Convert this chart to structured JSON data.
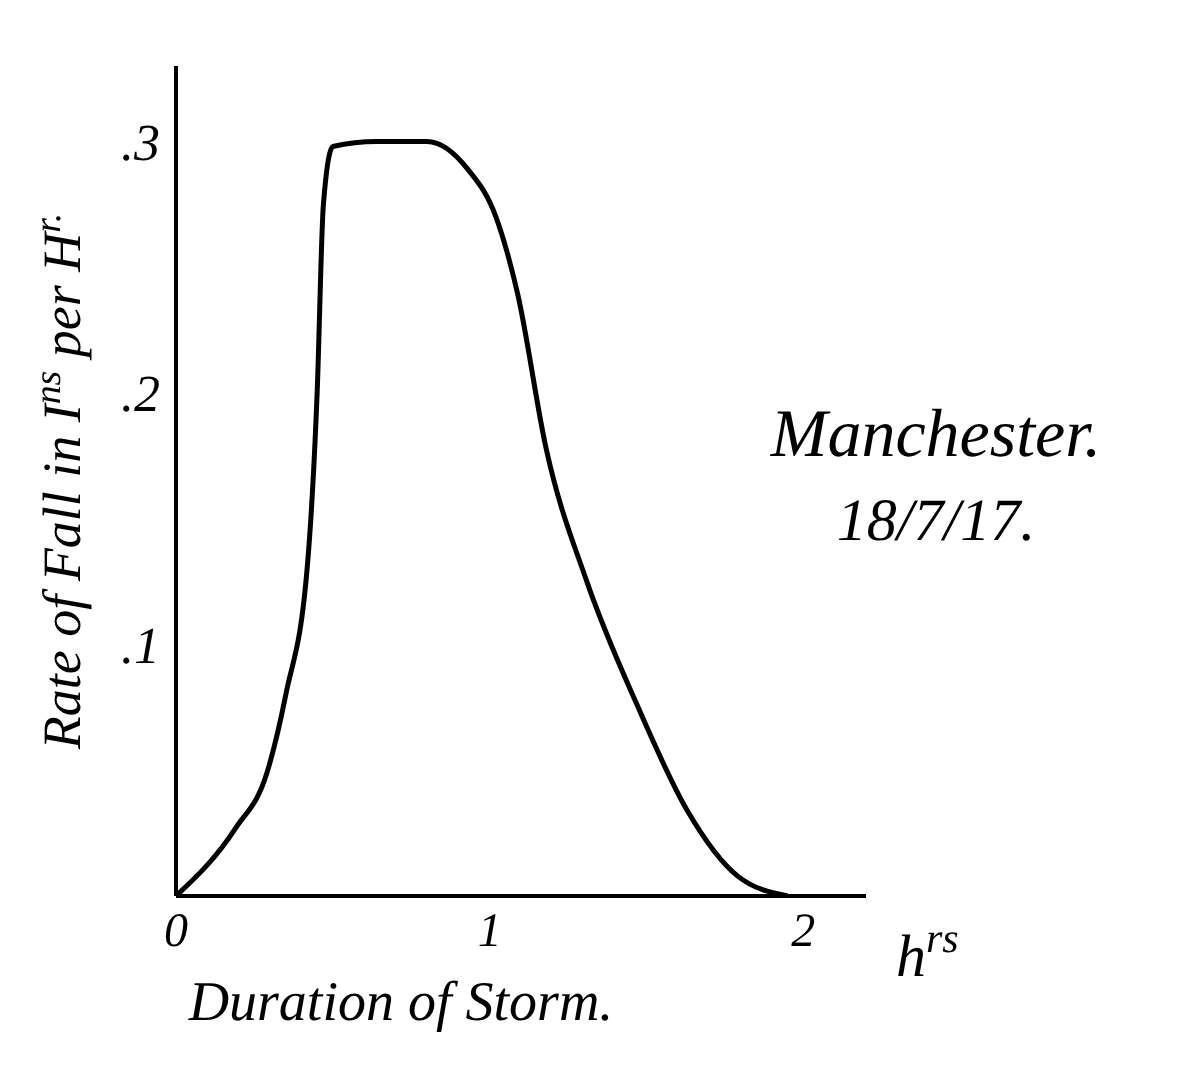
{
  "chart_data": {
    "type": "line",
    "xlabel": "Duration of Storm.",
    "ylabel": "Rate of Fall in I$^{ns}$ per H$^{r.}$",
    "annotations": [
      "h$^{rs}$",
      "Manchester.",
      "18/7/17."
    ],
    "series": [
      {
        "color": "#000000",
        "x": [
          0,
          0.19,
          0.29,
          0.35,
          0.42,
          0.45,
          0.47,
          0.5,
          0.64,
          0.8,
          0.93,
          1.02,
          1.09,
          1.18,
          1.31,
          1.47,
          1.63,
          1.79,
          1.95
        ],
        "values": [
          0,
          0.027,
          0.049,
          0.08,
          0.133,
          0.2,
          0.275,
          0.298,
          0.3,
          0.3,
          0.289,
          0.27,
          0.239,
          0.178,
          0.125,
          0.076,
          0.034,
          0.008,
          0
        ]
      }
    ],
    "xlim": [
      0,
      2.2
    ],
    "ylim": [
      0,
      0.33
    ],
    "xticks": [
      0,
      1,
      2
    ],
    "yticks": [
      {
        "value": 0.1,
        "label": ".1"
      },
      {
        "value": 0.2,
        "label": ".2"
      },
      {
        "value": 0.3,
        "label": ".3"
      }
    ],
    "grid": false,
    "legend": false,
    "marker": "none",
    "line_style": "solid"
  }
}
